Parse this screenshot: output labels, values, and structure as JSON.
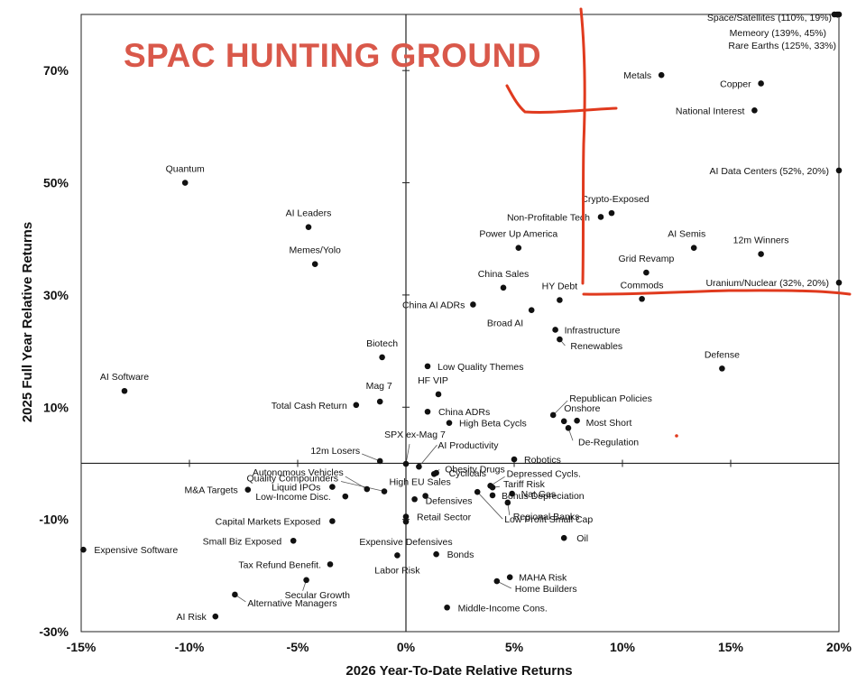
{
  "chart_data": {
    "type": "scatter",
    "title": "",
    "xlabel": "2026 Year-To-Date Relative Returns",
    "ylabel": "2025 Full Year Relative Returns",
    "xlim": [
      -15,
      20
    ],
    "ylim": [
      -30,
      80
    ],
    "x_ticks": [
      "-15%",
      "-10%",
      "-5%",
      "0%",
      "5%",
      "10%",
      "15%",
      "20%"
    ],
    "y_ticks": [
      "70%",
      "50%",
      "30%",
      "10%",
      "-10%",
      "-30%"
    ],
    "grid": false,
    "annotation": "SPAC HUNTING GROUND",
    "annotation_color": "#d9584a",
    "point_color": "#111111",
    "points": [
      {
        "label": "Space/Satellites (110%, 19%)",
        "x": 20,
        "y": 80
      },
      {
        "label": "Memeory (139%, 45%)",
        "x": 19,
        "y": 80
      },
      {
        "label": "Rare Earths (125%, 33%)",
        "x": 20,
        "y": 80
      },
      {
        "label": "Metals",
        "x": 11.8,
        "y": 69.2
      },
      {
        "label": "Copper",
        "x": 16.4,
        "y": 67.7
      },
      {
        "label": "National Interest",
        "x": 16.1,
        "y": 62.9
      },
      {
        "label": "AI Data Centers (52%, 20%)",
        "x": 20,
        "y": 52.2
      },
      {
        "label": "Quantum",
        "x": -10.2,
        "y": 50.0
      },
      {
        "label": "Crypto-Exposed",
        "x": 9.5,
        "y": 44.6
      },
      {
        "label": "Non-Profitable Tech",
        "x": 9.0,
        "y": 43.9
      },
      {
        "label": "AI Leaders",
        "x": -4.5,
        "y": 42.1
      },
      {
        "label": "Power Up America",
        "x": 5.2,
        "y": 38.4
      },
      {
        "label": "AI Semis",
        "x": 13.3,
        "y": 38.4
      },
      {
        "label": "12m Winners",
        "x": 16.4,
        "y": 37.3
      },
      {
        "label": "Memes/Yolo",
        "x": -4.2,
        "y": 35.5
      },
      {
        "label": "Grid Revamp",
        "x": 11.1,
        "y": 34.0
      },
      {
        "label": "Uranium/Nuclear (32%, 20%)",
        "x": 20,
        "y": 32.2
      },
      {
        "label": "China Sales",
        "x": 4.5,
        "y": 31.3
      },
      {
        "label": "HY Debt",
        "x": 7.1,
        "y": 29.1
      },
      {
        "label": "Commods",
        "x": 10.9,
        "y": 29.3
      },
      {
        "label": "China AI ADRs",
        "x": 3.1,
        "y": 28.3
      },
      {
        "label": "Broad AI",
        "x": 5.8,
        "y": 27.3
      },
      {
        "label": "Infrastructure",
        "x": 6.9,
        "y": 23.8
      },
      {
        "label": "Renewables",
        "x": 7.1,
        "y": 22.1
      },
      {
        "label": "Biotech",
        "x": -1.1,
        "y": 18.9
      },
      {
        "label": "Low Quality Themes",
        "x": 1.0,
        "y": 17.3
      },
      {
        "label": "Defense",
        "x": 14.6,
        "y": 16.9
      },
      {
        "label": "AI Software",
        "x": -13.0,
        "y": 12.9
      },
      {
        "label": "HF VIP",
        "x": 1.5,
        "y": 12.3
      },
      {
        "label": "Republican Policies",
        "x": 6.8,
        "y": 8.6
      },
      {
        "label": "Mag 7",
        "x": -1.2,
        "y": 11.0
      },
      {
        "label": "Total Cash Return",
        "x": -2.3,
        "y": 10.4
      },
      {
        "label": "China ADRs",
        "x": 1.0,
        "y": 9.2
      },
      {
        "label": "Onshore",
        "x": 7.3,
        "y": 7.5
      },
      {
        "label": "Most Short",
        "x": 7.9,
        "y": 7.6
      },
      {
        "label": "High Beta Cycls",
        "x": 2.0,
        "y": 7.2
      },
      {
        "label": "De-Regulation",
        "x": 7.5,
        "y": 6.3
      },
      {
        "label": "SPX ex-Mag 7",
        "x": 0.0,
        "y": -0.1
      },
      {
        "label": "AI Productivity",
        "x": 0.6,
        "y": -0.6
      },
      {
        "label": "12m Losers",
        "x": -1.2,
        "y": 0.4
      },
      {
        "label": "Quality Compounders",
        "x": -1.0,
        "y": -5.0
      },
      {
        "label": "Obesity Drugs",
        "x": 1.3,
        "y": -1.9
      },
      {
        "label": "Robotics",
        "x": 5.0,
        "y": 0.7
      },
      {
        "label": "Cyclicals",
        "x": 1.4,
        "y": -1.7
      },
      {
        "label": "Depressed Cycls.",
        "x": 3.9,
        "y": -4.0
      },
      {
        "label": "Autonomous Vehicles",
        "x": -1.8,
        "y": -4.6
      },
      {
        "label": "M&A Targets",
        "x": -7.3,
        "y": -4.7
      },
      {
        "label": "Liquid IPOs",
        "x": -3.4,
        "y": -4.2
      },
      {
        "label": "Low-Income Disc.",
        "x": -2.8,
        "y": -5.9
      },
      {
        "label": "High EU Sales",
        "x": 0.9,
        "y": -5.8
      },
      {
        "label": "Tariff Risk",
        "x": 4.0,
        "y": -4.3
      },
      {
        "label": "Nat Gas",
        "x": 4.9,
        "y": -5.4
      },
      {
        "label": "Bonus Depreciation",
        "x": 4.0,
        "y": -5.7
      },
      {
        "label": "Defensives",
        "x": 0.4,
        "y": -6.4
      },
      {
        "label": "Regional Banks",
        "x": 4.7,
        "y": -7.0
      },
      {
        "label": "Low Profit Small Cap",
        "x": 3.3,
        "y": -5.1
      },
      {
        "label": "Capital Markets Exposed",
        "x": -3.4,
        "y": -10.3
      },
      {
        "label": "Retail Sector",
        "x": 0.0,
        "y": -9.5
      },
      {
        "label": "Expensive Defensives",
        "x": 0.0,
        "y": -10.4
      },
      {
        "label": "Small Biz Exposed",
        "x": -5.2,
        "y": -13.8
      },
      {
        "label": "Oil",
        "x": 7.3,
        "y": -13.3
      },
      {
        "label": "Expensive Software",
        "x": -14.9,
        "y": -15.4
      },
      {
        "label": "Bonds",
        "x": 1.4,
        "y": -16.2
      },
      {
        "label": "Labor Risk",
        "x": -0.4,
        "y": -16.4
      },
      {
        "label": "Tax Refund Benefit.",
        "x": -3.5,
        "y": -18.0
      },
      {
        "label": "MAHA Risk",
        "x": 4.8,
        "y": -20.3
      },
      {
        "label": "Home Builders",
        "x": 4.2,
        "y": -21.0
      },
      {
        "label": "Secular Growth",
        "x": -4.6,
        "y": -20.8
      },
      {
        "label": "Alternative Managers",
        "x": -7.9,
        "y": -23.4
      },
      {
        "label": "Middle-Income Cons.",
        "x": 1.9,
        "y": -25.7
      },
      {
        "label": "AI Risk",
        "x": -8.8,
        "y": -27.3
      }
    ]
  }
}
